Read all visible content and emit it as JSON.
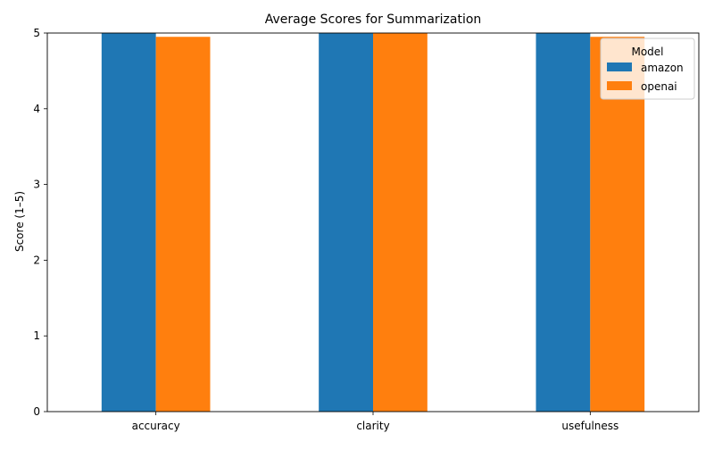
{
  "chart_data": {
    "type": "bar",
    "title": "Average Scores for Summarization",
    "xlabel": "",
    "ylabel": "Score (1–5)",
    "categories": [
      "accuracy",
      "clarity",
      "usefulness"
    ],
    "series": [
      {
        "name": "amazon",
        "values": [
          5.0,
          5.0,
          5.0
        ],
        "color": "#1f77b4"
      },
      {
        "name": "openai",
        "values": [
          4.95,
          5.0,
          4.95
        ],
        "color": "#ff7f0e"
      }
    ],
    "ylim": [
      0,
      5
    ],
    "yticks": [
      "0",
      "1",
      "2",
      "3",
      "4",
      "5"
    ],
    "grid": false,
    "legend": {
      "title": "Model",
      "placement": "top-right"
    }
  }
}
